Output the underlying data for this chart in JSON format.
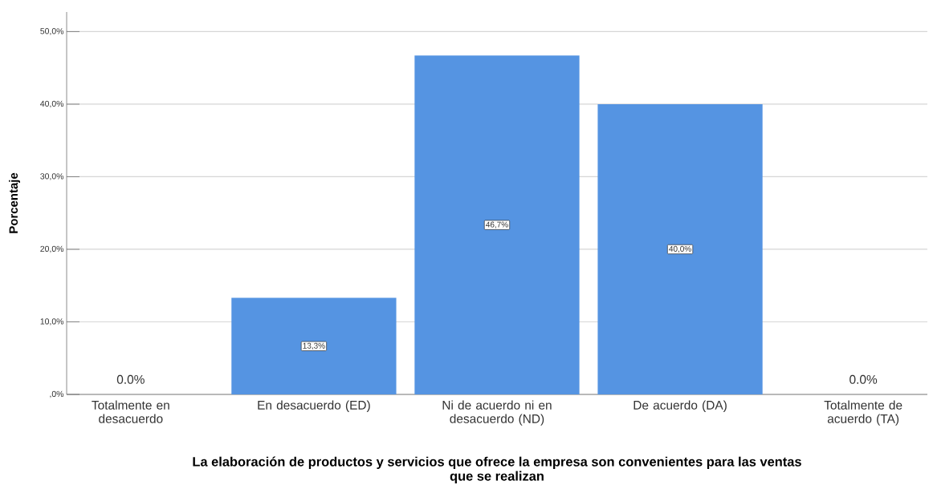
{
  "chart_data": {
    "type": "bar",
    "xlabel": "La elaboración de productos y servicios que ofrece la empresa son convenientes para las ventas que se realizan",
    "ylabel": "Porcentaje",
    "categories": [
      "Totalmente en desacuerdo",
      "En desacuerdo (ED)",
      "Ni de acuerdo ni en desacuerdo (ND)",
      "De acuerdo (DA)",
      "Totalmente de acuerdo (TA)"
    ],
    "values": [
      0,
      13.3,
      46.7,
      40.0,
      0
    ],
    "color": "#5594e2",
    "value_labels": [
      "0.0%",
      "13,3%",
      "46,7%",
      "40,0%",
      "0.0%"
    ],
    "ylim": [
      0,
      52.7
    ],
    "yticks": [
      {
        "value": 0,
        "label": ",0%"
      },
      {
        "value": 10,
        "label": "10,0%"
      },
      {
        "value": 20,
        "label": "20,0%"
      },
      {
        "value": 30,
        "label": "30,0%"
      },
      {
        "value": 40,
        "label": "40,0%"
      },
      {
        "value": 50,
        "label": "50,0%"
      }
    ],
    "grid": "y"
  }
}
